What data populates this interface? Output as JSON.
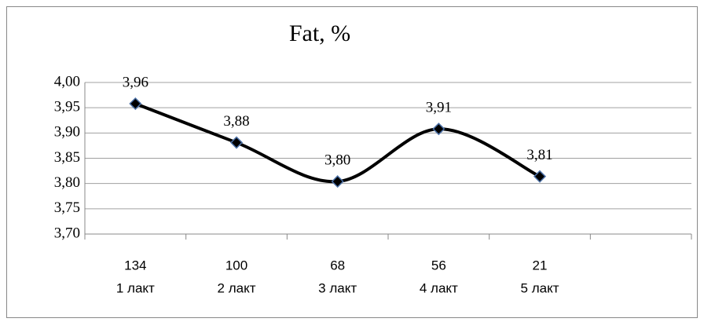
{
  "chart_data": {
    "type": "line",
    "title": "Fat, %",
    "categories": [
      [
        "134",
        "1 лакт"
      ],
      [
        "100",
        "2 лакт"
      ],
      [
        "68",
        "3 лакт"
      ],
      [
        "56",
        "4 лакт"
      ],
      [
        "21",
        "5 лакт"
      ],
      null
    ],
    "values": [
      3.958,
      3.881,
      3.804,
      3.908,
      3.814,
      null
    ],
    "value_labels": [
      "3,96",
      "3,88",
      "3,80",
      "3,91",
      "3,81",
      null
    ],
    "color": "#000000",
    "ylim": [
      3.7,
      4.0
    ],
    "yticks": [
      {
        "value": 3.7,
        "label": "3,70"
      },
      {
        "value": 3.75,
        "label": "3,75"
      },
      {
        "value": 3.8,
        "label": "3,80"
      },
      {
        "value": 3.85,
        "label": "3,85"
      },
      {
        "value": 3.9,
        "label": "3,90"
      },
      {
        "value": 3.95,
        "label": "3,95"
      },
      {
        "value": 4.0,
        "label": "4,00"
      }
    ],
    "grid": true,
    "smooth": true
  }
}
